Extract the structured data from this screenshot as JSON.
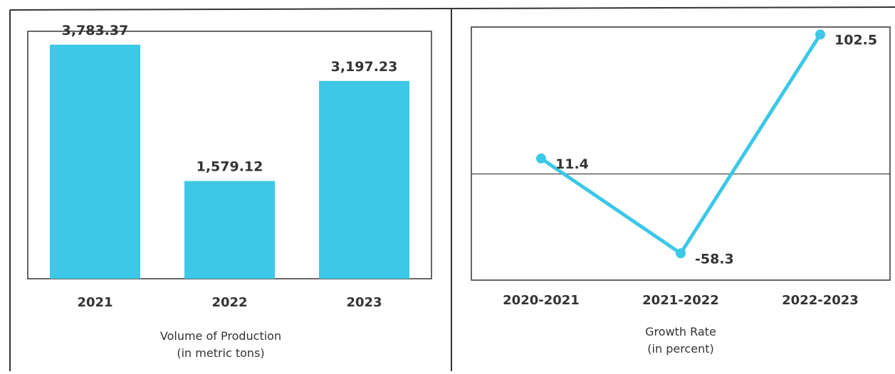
{
  "charts": {
    "chart_data": [
      {
        "type": "bar",
        "categories": [
          "2021",
          "2022",
          "2023"
        ],
        "values": [
          3783.37,
          1579.12,
          3197.23
        ],
        "data_labels": [
          "3,783.37",
          "1,579.12",
          "3,197.23"
        ],
        "title": "",
        "xlabel": "",
        "ylabel": "",
        "caption": [
          "Volume of Production",
          "(in metric tons)"
        ],
        "ylim": [
          0,
          4000
        ],
        "grid": false,
        "legend": "none",
        "color": "#3cc8e6"
      },
      {
        "type": "line",
        "categories": [
          "2020-2021",
          "2021-2022",
          "2022-2023"
        ],
        "values": [
          11.4,
          -58.3,
          102.5
        ],
        "data_labels": [
          "11.4",
          "-58.3",
          "102.5"
        ],
        "title": "",
        "xlabel": "",
        "ylabel": "",
        "caption": [
          "Growth Rate",
          "(in percent)"
        ],
        "ylim": [
          -78,
          108
        ],
        "zero_line": true,
        "grid": false,
        "legend": "none",
        "color": "#3cc8e6"
      }
    ]
  }
}
